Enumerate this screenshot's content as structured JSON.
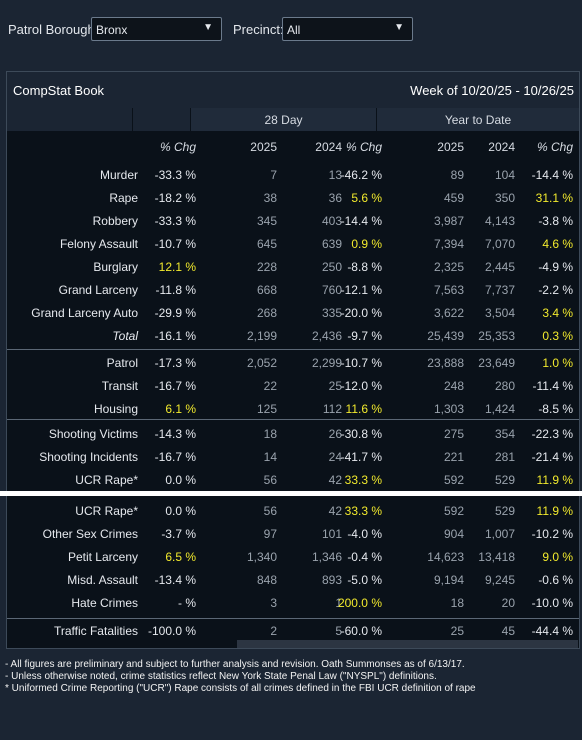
{
  "filters": {
    "borough_label": "Patrol Borough:",
    "borough_value": "Bronx",
    "precinct_label": "Precinct:",
    "precinct_value": "All"
  },
  "panel": {
    "title": "CompStat Book",
    "week": "Week of 10/20/25 - 10/26/25",
    "group_28day": "28 Day",
    "group_ytd": "Year to Date"
  },
  "columns": [
    "% Chg",
    "2025",
    "2024",
    "% Chg",
    "2025",
    "2024",
    "% Chg"
  ],
  "colors": {
    "highlight": "#f2ea2d",
    "panel_bg": "#0a1119",
    "header_bg": "#1b2533"
  },
  "rows": [
    {
      "label": "Murder",
      "wk": "-33.3 %",
      "d25": "7",
      "d24": "13",
      "dchg": "-46.2 %",
      "y25": "89",
      "y24": "104",
      "ychg": "-14.4 %"
    },
    {
      "label": "Rape",
      "wk": "-18.2 %",
      "d25": "38",
      "d24": "36",
      "dchg": "5.6 %",
      "y25": "459",
      "y24": "350",
      "ychg": "31.1 %"
    },
    {
      "label": "Robbery",
      "wk": "-33.3 %",
      "d25": "345",
      "d24": "403",
      "dchg": "-14.4 %",
      "y25": "3,987",
      "y24": "4,143",
      "ychg": "-3.8 %"
    },
    {
      "label": "Felony Assault",
      "wk": "-10.7 %",
      "d25": "645",
      "d24": "639",
      "dchg": "0.9 %",
      "y25": "7,394",
      "y24": "7,070",
      "ychg": "4.6 %"
    },
    {
      "label": "Burglary",
      "wk": "12.1 %",
      "d25": "228",
      "d24": "250",
      "dchg": "-8.8 %",
      "y25": "2,325",
      "y24": "2,445",
      "ychg": "-4.9 %"
    },
    {
      "label": "Grand Larceny",
      "wk": "-11.8 %",
      "d25": "668",
      "d24": "760",
      "dchg": "-12.1 %",
      "y25": "7,563",
      "y24": "7,737",
      "ychg": "-2.2 %"
    },
    {
      "label": "Grand Larceny Auto",
      "wk": "-29.9 %",
      "d25": "268",
      "d24": "335",
      "dchg": "-20.0 %",
      "y25": "3,622",
      "y24": "3,504",
      "ychg": "3.4 %"
    },
    {
      "label": "Total",
      "wk": "-16.1 %",
      "d25": "2,199",
      "d24": "2,436",
      "dchg": "-9.7 %",
      "y25": "25,439",
      "y24": "25,353",
      "ychg": "0.3 %"
    },
    {
      "label": "Patrol",
      "wk": "-17.3 %",
      "d25": "2,052",
      "d24": "2,299",
      "dchg": "-10.7 %",
      "y25": "23,888",
      "y24": "23,649",
      "ychg": "1.0 %"
    },
    {
      "label": "Transit",
      "wk": "-16.7 %",
      "d25": "22",
      "d24": "25",
      "dchg": "-12.0 %",
      "y25": "248",
      "y24": "280",
      "ychg": "-11.4 %"
    },
    {
      "label": "Housing",
      "wk": "6.1 %",
      "d25": "125",
      "d24": "112",
      "dchg": "11.6 %",
      "y25": "1,303",
      "y24": "1,424",
      "ychg": "-8.5 %"
    },
    {
      "label": "Shooting Victims",
      "wk": "-14.3 %",
      "d25": "18",
      "d24": "26",
      "dchg": "-30.8 %",
      "y25": "275",
      "y24": "354",
      "ychg": "-22.3 %"
    },
    {
      "label": "Shooting Incidents",
      "wk": "-16.7 %",
      "d25": "14",
      "d24": "24",
      "dchg": "-41.7 %",
      "y25": "221",
      "y24": "281",
      "ychg": "-21.4 %"
    },
    {
      "label": "UCR Rape*",
      "wk": "0.0 %",
      "d25": "56",
      "d24": "42",
      "dchg": "33.3 %",
      "y25": "592",
      "y24": "529",
      "ychg": "11.9 %"
    },
    {
      "label": "UCR Rape*",
      "wk": "0.0 %",
      "d25": "56",
      "d24": "42",
      "dchg": "33.3 %",
      "y25": "592",
      "y24": "529",
      "ychg": "11.9 %"
    },
    {
      "label": "Other Sex Crimes",
      "wk": "-3.7 %",
      "d25": "97",
      "d24": "101",
      "dchg": "-4.0 %",
      "y25": "904",
      "y24": "1,007",
      "ychg": "-10.2 %"
    },
    {
      "label": "Petit Larceny",
      "wk": "6.5 %",
      "d25": "1,340",
      "d24": "1,346",
      "dchg": "-0.4 %",
      "y25": "14,623",
      "y24": "13,418",
      "ychg": "9.0 %"
    },
    {
      "label": "Misd. Assault",
      "wk": "-13.4 %",
      "d25": "848",
      "d24": "893",
      "dchg": "-5.0 %",
      "y25": "9,194",
      "y24": "9,245",
      "ychg": "-0.6 %"
    },
    {
      "label": "Hate Crimes",
      "wk": "- %",
      "d25": "3",
      "d24": "1",
      "dchg": "200.0 %",
      "y25": "18",
      "y24": "20",
      "ychg": "-10.0 %"
    },
    {
      "label": "Traffic Fatalities",
      "wk": "-100.0 %",
      "d25": "2",
      "d24": "5",
      "dchg": "-60.0 %",
      "y25": "25",
      "y24": "45",
      "ychg": "-44.4 %"
    }
  ],
  "notes": [
    "- All figures are preliminary and subject to further analysis and revision. Oath Summonses as of 6/13/17.",
    "- Unless otherwise noted, crime statistics reflect New York State Penal Law (\"NYSPL\") definitions.",
    "* Uniformed Crime Reporting (\"UCR\") Rape consists of all crimes defined in the FBI UCR definition of rape"
  ]
}
